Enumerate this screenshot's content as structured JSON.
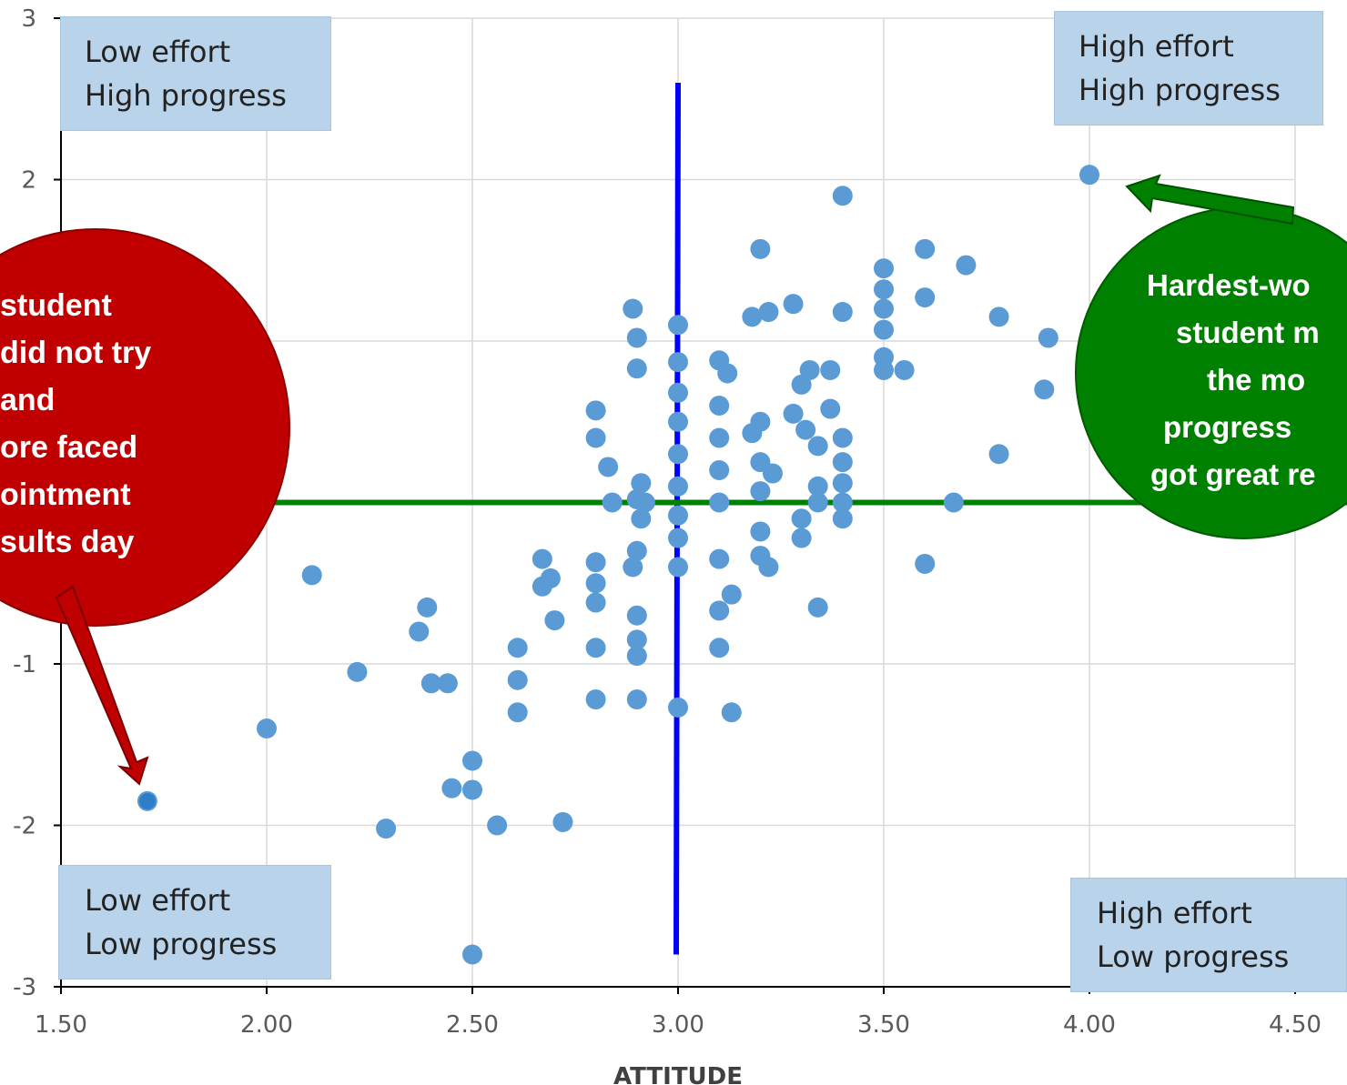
{
  "chart_data": {
    "type": "scatter",
    "title": "",
    "xlabel": "ATTITUDE",
    "ylabel": "",
    "xlim": [
      1.5,
      4.5
    ],
    "ylim": [
      -3,
      3
    ],
    "grid": true,
    "x_ticks": [
      "1.50",
      "2.00",
      "2.50",
      "3.00",
      "3.50",
      "4.00",
      "4.50"
    ],
    "y_ticks": [
      "3",
      "2",
      "-1",
      "-2",
      "-3"
    ],
    "marker_color": "#5b9bd5",
    "reference_lines": [
      {
        "orientation": "vertical",
        "x": 3.0,
        "y_range": [
          -2.8,
          2.6
        ],
        "color": "#0000ff"
      },
      {
        "orientation": "horizontal",
        "y": 0.0,
        "color": "#008000"
      }
    ],
    "points": [
      {
        "x": 1.71,
        "y": -1.85
      },
      {
        "x": 2.0,
        "y": -1.4
      },
      {
        "x": 2.11,
        "y": -0.45
      },
      {
        "x": 2.22,
        "y": -1.05
      },
      {
        "x": 2.29,
        "y": -2.02
      },
      {
        "x": 2.37,
        "y": -0.8
      },
      {
        "x": 2.39,
        "y": -0.65
      },
      {
        "x": 2.4,
        "y": -1.12
      },
      {
        "x": 2.44,
        "y": -1.12
      },
      {
        "x": 2.45,
        "y": -1.77
      },
      {
        "x": 2.5,
        "y": -1.6
      },
      {
        "x": 2.5,
        "y": -1.78
      },
      {
        "x": 2.5,
        "y": -2.8
      },
      {
        "x": 2.56,
        "y": -2.0
      },
      {
        "x": 2.61,
        "y": -0.9
      },
      {
        "x": 2.61,
        "y": -1.1
      },
      {
        "x": 2.61,
        "y": -1.3
      },
      {
        "x": 2.67,
        "y": -0.35
      },
      {
        "x": 2.67,
        "y": -0.52
      },
      {
        "x": 2.69,
        "y": -0.47
      },
      {
        "x": 2.7,
        "y": -0.73
      },
      {
        "x": 2.72,
        "y": -1.98
      },
      {
        "x": 2.8,
        "y": 0.57
      },
      {
        "x": 2.8,
        "y": 0.4
      },
      {
        "x": 2.8,
        "y": -0.37
      },
      {
        "x": 2.8,
        "y": -0.5
      },
      {
        "x": 2.8,
        "y": -0.62
      },
      {
        "x": 2.8,
        "y": -0.9
      },
      {
        "x": 2.8,
        "y": -1.22
      },
      {
        "x": 2.83,
        "y": 0.22
      },
      {
        "x": 2.84,
        "y": 0.0
      },
      {
        "x": 2.89,
        "y": 1.2
      },
      {
        "x": 2.89,
        "y": -0.4
      },
      {
        "x": 2.9,
        "y": 1.02
      },
      {
        "x": 2.9,
        "y": 0.83
      },
      {
        "x": 2.9,
        "y": 0.02
      },
      {
        "x": 2.9,
        "y": -0.3
      },
      {
        "x": 2.9,
        "y": -0.7
      },
      {
        "x": 2.9,
        "y": -0.85
      },
      {
        "x": 2.9,
        "y": -0.95
      },
      {
        "x": 2.9,
        "y": -1.22
      },
      {
        "x": 2.91,
        "y": 0.12
      },
      {
        "x": 2.91,
        "y": -0.1
      },
      {
        "x": 2.92,
        "y": 0.0
      },
      {
        "x": 3.0,
        "y": 1.1
      },
      {
        "x": 3.0,
        "y": 0.87
      },
      {
        "x": 3.0,
        "y": 0.68
      },
      {
        "x": 3.0,
        "y": 0.5
      },
      {
        "x": 3.0,
        "y": 0.3
      },
      {
        "x": 3.0,
        "y": 0.1
      },
      {
        "x": 3.0,
        "y": -0.08
      },
      {
        "x": 3.0,
        "y": -0.22
      },
      {
        "x": 3.0,
        "y": -0.4
      },
      {
        "x": 3.0,
        "y": -1.27
      },
      {
        "x": 3.1,
        "y": 0.88
      },
      {
        "x": 3.1,
        "y": 0.6
      },
      {
        "x": 3.1,
        "y": 0.4
      },
      {
        "x": 3.1,
        "y": 0.2
      },
      {
        "x": 3.1,
        "y": 0.0
      },
      {
        "x": 3.1,
        "y": -0.35
      },
      {
        "x": 3.1,
        "y": -0.67
      },
      {
        "x": 3.1,
        "y": -0.9
      },
      {
        "x": 3.12,
        "y": 0.8
      },
      {
        "x": 3.13,
        "y": -0.57
      },
      {
        "x": 3.13,
        "y": -1.3
      },
      {
        "x": 3.18,
        "y": 1.15
      },
      {
        "x": 3.18,
        "y": 0.43
      },
      {
        "x": 3.2,
        "y": 1.57
      },
      {
        "x": 3.2,
        "y": 0.5
      },
      {
        "x": 3.2,
        "y": 0.25
      },
      {
        "x": 3.2,
        "y": 0.07
      },
      {
        "x": 3.2,
        "y": -0.18
      },
      {
        "x": 3.2,
        "y": -0.33
      },
      {
        "x": 3.22,
        "y": 1.18
      },
      {
        "x": 3.22,
        "y": -0.4
      },
      {
        "x": 3.23,
        "y": 0.18
      },
      {
        "x": 3.28,
        "y": 1.23
      },
      {
        "x": 3.28,
        "y": 0.55
      },
      {
        "x": 3.31,
        "y": 0.45
      },
      {
        "x": 3.3,
        "y": 0.73
      },
      {
        "x": 3.32,
        "y": 0.82
      },
      {
        "x": 3.3,
        "y": -0.1
      },
      {
        "x": 3.3,
        "y": -0.22
      },
      {
        "x": 3.34,
        "y": 0.35
      },
      {
        "x": 3.34,
        "y": 0.1
      },
      {
        "x": 3.34,
        "y": 0.0
      },
      {
        "x": 3.34,
        "y": -0.65
      },
      {
        "x": 3.37,
        "y": 0.82
      },
      {
        "x": 3.37,
        "y": 0.58
      },
      {
        "x": 3.4,
        "y": 1.9
      },
      {
        "x": 3.4,
        "y": 1.18
      },
      {
        "x": 3.4,
        "y": 0.4
      },
      {
        "x": 3.4,
        "y": 0.25
      },
      {
        "x": 3.4,
        "y": 0.12
      },
      {
        "x": 3.4,
        "y": 0.0
      },
      {
        "x": 3.4,
        "y": -0.1
      },
      {
        "x": 3.5,
        "y": 1.45
      },
      {
        "x": 3.5,
        "y": 1.32
      },
      {
        "x": 3.5,
        "y": 1.2
      },
      {
        "x": 3.5,
        "y": 1.07
      },
      {
        "x": 3.5,
        "y": 0.9
      },
      {
        "x": 3.5,
        "y": 0.82
      },
      {
        "x": 3.55,
        "y": 0.82
      },
      {
        "x": 3.6,
        "y": 1.57
      },
      {
        "x": 3.6,
        "y": 1.27
      },
      {
        "x": 3.6,
        "y": -0.38
      },
      {
        "x": 3.67,
        "y": 0.0
      },
      {
        "x": 3.7,
        "y": 1.47
      },
      {
        "x": 3.78,
        "y": 1.15
      },
      {
        "x": 3.78,
        "y": 0.3
      },
      {
        "x": 3.89,
        "y": 0.7
      },
      {
        "x": 3.9,
        "y": 1.02
      },
      {
        "x": 4.0,
        "y": 2.03
      }
    ]
  },
  "quadrant_labels": {
    "top_left": {
      "line1": "Low effort",
      "line2": "High progress"
    },
    "top_right": {
      "line1": "High effort",
      "line2": "High progress"
    },
    "bottom_left": {
      "line1": "Low effort",
      "line2": "Low progress"
    },
    "bottom_right": {
      "line1": "High effort",
      "line2": "Low progress"
    }
  },
  "callouts": {
    "red": {
      "color": "#c00000",
      "lines": [
        "student",
        "did not try",
        "and",
        "ore faced",
        "ointment",
        "sults day"
      ]
    },
    "green": {
      "color": "#008000",
      "lines": [
        "Hardest-wo",
        "student m",
        "the mo",
        "progress",
        "got great re"
      ]
    }
  }
}
